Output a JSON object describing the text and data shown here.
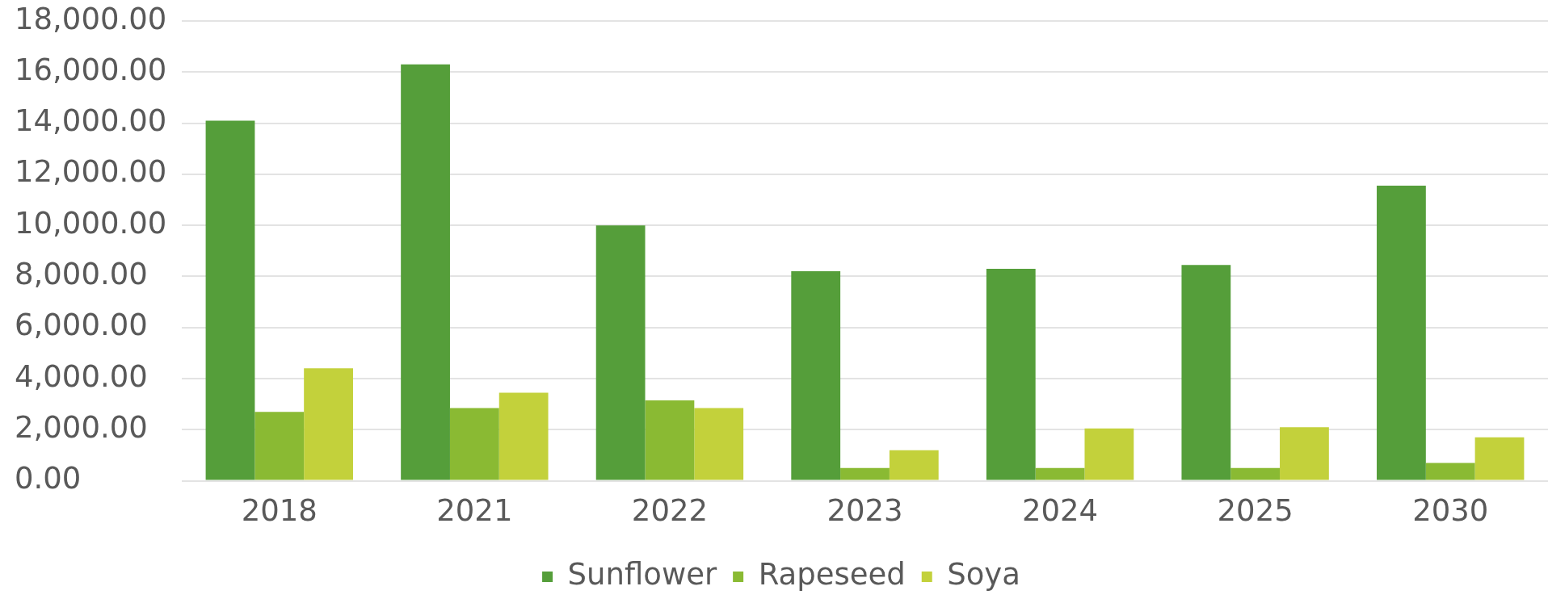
{
  "chart_data": {
    "type": "bar",
    "categories": [
      "2018",
      "2021",
      "2022",
      "2023",
      "2024",
      "2025",
      "2030"
    ],
    "series": [
      {
        "name": "Sunflower",
        "color": "#559e3a",
        "values": [
          14100,
          16300,
          10000,
          8200,
          8300,
          8450,
          11550
        ]
      },
      {
        "name": "Rapeseed",
        "color": "#8aba33",
        "values": [
          2700,
          2850,
          3150,
          500,
          500,
          500,
          700
        ]
      },
      {
        "name": "Soya",
        "color": "#c3d13b",
        "values": [
          4400,
          3450,
          2850,
          1200,
          2050,
          2100,
          1700
        ]
      }
    ],
    "ylim": [
      0,
      18000
    ],
    "yticks": [
      {
        "value": 0,
        "label": "0.00"
      },
      {
        "value": 2000,
        "label": "2,000.00"
      },
      {
        "value": 4000,
        "label": "4,000.00"
      },
      {
        "value": 6000,
        "label": "6,000.00"
      },
      {
        "value": 8000,
        "label": "8,000.00"
      },
      {
        "value": 10000,
        "label": "10,000.00"
      },
      {
        "value": 12000,
        "label": "12,000.00"
      },
      {
        "value": 14000,
        "label": "14,000.00"
      },
      {
        "value": 16000,
        "label": "16,000.00"
      },
      {
        "value": 18000,
        "label": "18,000.00"
      }
    ],
    "grid": "y",
    "legend": "bottom"
  }
}
